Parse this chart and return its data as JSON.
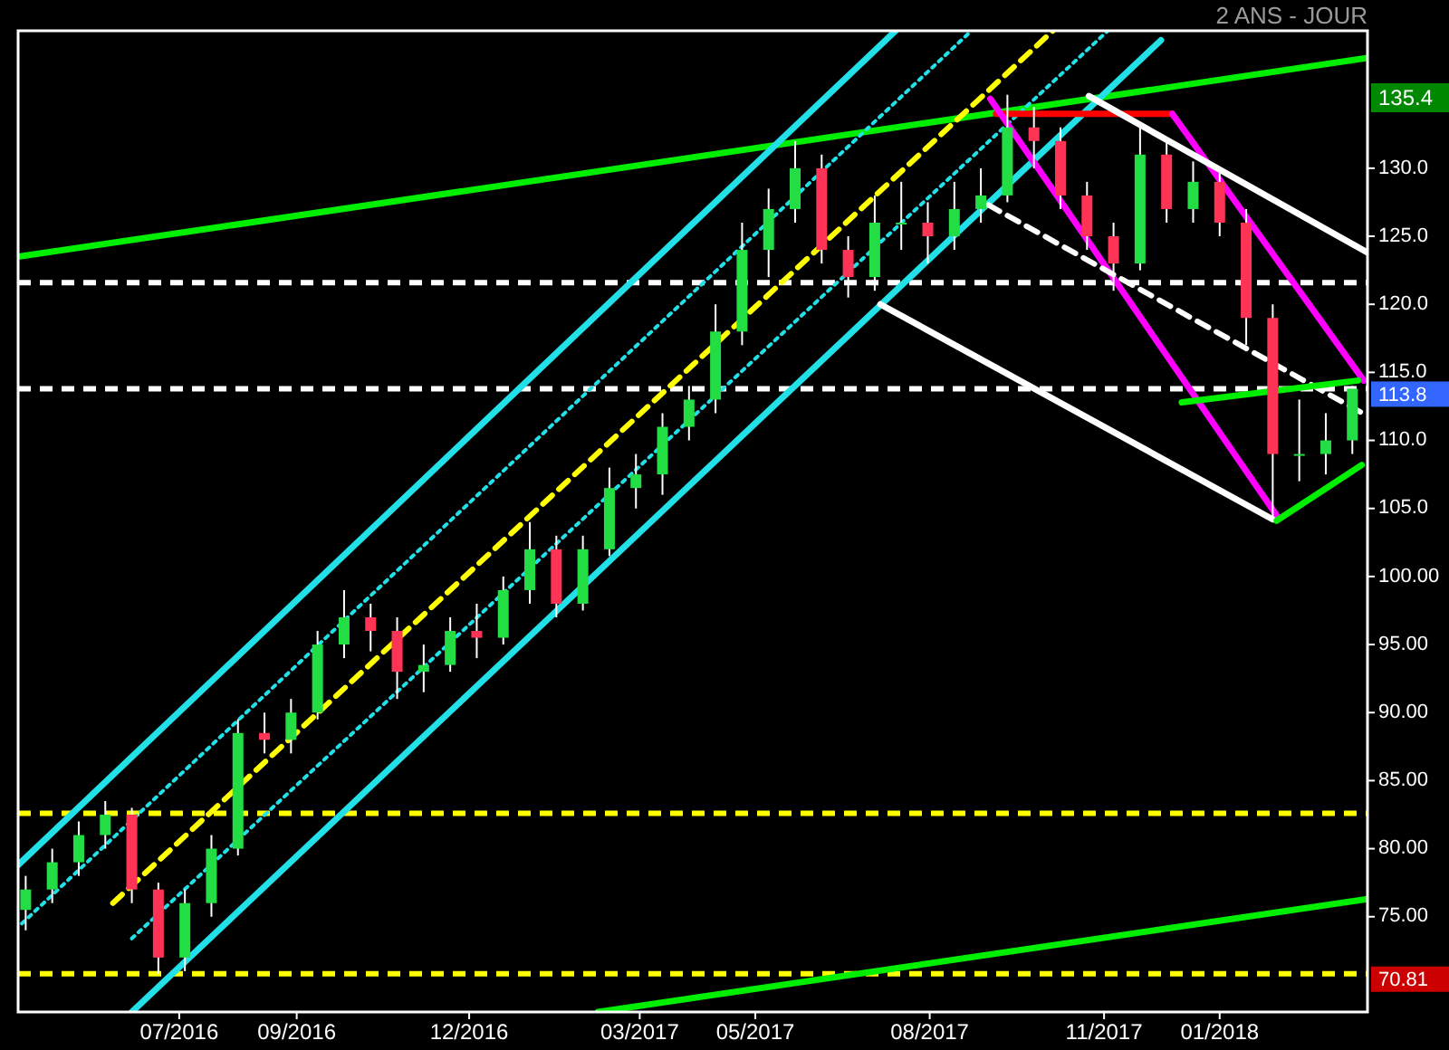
{
  "chart_data": {
    "type": "candlestick",
    "title": "2 ANS - JOUR",
    "x": [
      "2016-04-11",
      "2016-04-25",
      "2016-05-09",
      "2016-05-23",
      "2016-06-06",
      "2016-06-20",
      "2016-07-04",
      "2016-07-18",
      "2016-08-01",
      "2016-08-15",
      "2016-08-29",
      "2016-09-12",
      "2016-09-26",
      "2016-10-10",
      "2016-10-24",
      "2016-11-07",
      "2016-11-21",
      "2016-12-05",
      "2016-12-19",
      "2017-01-02",
      "2017-01-16",
      "2017-01-30",
      "2017-02-13",
      "2017-02-27",
      "2017-03-13",
      "2017-03-27",
      "2017-04-10",
      "2017-04-24",
      "2017-05-08",
      "2017-05-22",
      "2017-06-05",
      "2017-06-19",
      "2017-07-03",
      "2017-07-17",
      "2017-07-31",
      "2017-08-14",
      "2017-08-28",
      "2017-09-11",
      "2017-09-25",
      "2017-10-09",
      "2017-10-23",
      "2017-11-06",
      "2017-11-20",
      "2017-12-04",
      "2017-12-18",
      "2018-01-01",
      "2018-01-15",
      "2018-01-29",
      "2018-02-12",
      "2018-02-26",
      "2018-03-12"
    ],
    "ohlc": [
      [
        75.5,
        78,
        74,
        77
      ],
      [
        77,
        80,
        76,
        79
      ],
      [
        79,
        82,
        78,
        81
      ],
      [
        81,
        83.5,
        80,
        82.5
      ],
      [
        82.5,
        83,
        76,
        77
      ],
      [
        77,
        77.5,
        70.81,
        72
      ],
      [
        72,
        77,
        71,
        76
      ],
      [
        76,
        81,
        75,
        80
      ],
      [
        80,
        89.5,
        79.5,
        88.5
      ],
      [
        88.5,
        90,
        87,
        88
      ],
      [
        88,
        91,
        87,
        90
      ],
      [
        90,
        96,
        89.5,
        95
      ],
      [
        95,
        99,
        94,
        97
      ],
      [
        97,
        98,
        94.5,
        96
      ],
      [
        96,
        97,
        91,
        93
      ],
      [
        93,
        95,
        91.5,
        93.5
      ],
      [
        93.5,
        97,
        93,
        96
      ],
      [
        96,
        98,
        94,
        95.5
      ],
      [
        95.5,
        100,
        95,
        99
      ],
      [
        99,
        104,
        98,
        102
      ],
      [
        102,
        103,
        97,
        98
      ],
      [
        98,
        103,
        97.5,
        102
      ],
      [
        102,
        108,
        101.5,
        106.5
      ],
      [
        106.5,
        109,
        105,
        107.5
      ],
      [
        107.5,
        112,
        106,
        111
      ],
      [
        111,
        114,
        110,
        113
      ],
      [
        113,
        120,
        112,
        118
      ],
      [
        118,
        126,
        117,
        124
      ],
      [
        124,
        128.5,
        122,
        127
      ],
      [
        127,
        132,
        126,
        130
      ],
      [
        130,
        131,
        123,
        124
      ],
      [
        124,
        125,
        120.5,
        122
      ],
      [
        122,
        128,
        121,
        126
      ],
      [
        126,
        129,
        124,
        126
      ],
      [
        126,
        127.5,
        123,
        125
      ],
      [
        125,
        129,
        124,
        127
      ],
      [
        127,
        130,
        126,
        128
      ],
      [
        128,
        135.4,
        127.5,
        133
      ],
      [
        133,
        134.5,
        130,
        132
      ],
      [
        132,
        133,
        127,
        128
      ],
      [
        128,
        129,
        124,
        125
      ],
      [
        125,
        126,
        121,
        123
      ],
      [
        123,
        133,
        122.5,
        131
      ],
      [
        131,
        132,
        126,
        127
      ],
      [
        127,
        130.5,
        126,
        129
      ],
      [
        129,
        130,
        125,
        126
      ],
      [
        126,
        127,
        117,
        119
      ],
      [
        119,
        120,
        104,
        109
      ],
      [
        109,
        113,
        107,
        109
      ],
      [
        109,
        112,
        107.5,
        110
      ],
      [
        110,
        114,
        109,
        113.8
      ]
    ],
    "series": [
      {
        "type": "line",
        "color": "#00ee00",
        "line_style": "solid",
        "x": [
          "2016-04-07",
          "2018-03-20"
        ],
        "values": [
          123.5,
          138.1
        ]
      },
      {
        "type": "line",
        "color": "#00ee00",
        "line_style": "solid",
        "x": [
          "2017-02-07",
          "2018-03-20"
        ],
        "values": [
          68,
          76.3
        ]
      },
      {
        "type": "line",
        "color": "#22e0e8",
        "line_style": "solid",
        "x": [
          "2016-04-07",
          "2017-07-14"
        ],
        "values": [
          78.8,
          140.1
        ]
      },
      {
        "type": "line",
        "color": "#22e0e8",
        "line_style": "solid",
        "x": [
          "2016-06-06",
          "2017-12-01"
        ],
        "values": [
          68,
          139.4
        ]
      },
      {
        "type": "line",
        "color": "#22e0e8",
        "line_style": "dotted",
        "x": [
          "2016-04-09",
          "2017-08-23"
        ],
        "values": [
          74.5,
          140.1
        ]
      },
      {
        "type": "line",
        "color": "#22e0e8",
        "line_style": "dotted",
        "x": [
          "2016-06-06",
          "2017-11-03"
        ],
        "values": [
          73.4,
          140.1
        ]
      },
      {
        "type": "line",
        "color": "#ffff00",
        "line_style": "dashed",
        "x": [
          "2016-05-27",
          "2017-10-05"
        ],
        "values": [
          76,
          140.1
        ]
      },
      {
        "type": "line",
        "color": "#ff0000",
        "line_style": "solid",
        "x": [
          "2017-09-05",
          "2017-12-07"
        ],
        "values": [
          134,
          134
        ]
      },
      {
        "type": "line",
        "color": "#ff00ff",
        "line_style": "solid",
        "x": [
          "2017-09-02",
          "2018-01-31"
        ],
        "values": [
          135.1,
          104.5
        ]
      },
      {
        "type": "line",
        "color": "#ff00ff",
        "line_style": "solid",
        "x": [
          "2017-12-07",
          "2018-03-18"
        ],
        "values": [
          134,
          114.4
        ]
      },
      {
        "type": "line",
        "color": "#ffffff",
        "line_style": "solid",
        "x": [
          "2017-10-24",
          "2018-03-20"
        ],
        "values": [
          135.3,
          123.8
        ]
      },
      {
        "type": "line",
        "color": "#ffffff",
        "line_style": "solid",
        "x": [
          "2017-07-06",
          "2018-01-29"
        ],
        "values": [
          120,
          104.2
        ]
      },
      {
        "type": "line",
        "color": "#ffffff",
        "line_style": "dashed",
        "x": [
          "2017-09-01",
          "2018-03-20"
        ],
        "values": [
          127.3,
          111.8
        ]
      },
      {
        "type": "line",
        "color": "#00ee00",
        "line_style": "solid",
        "x": [
          "2017-12-12",
          "2018-03-15"
        ],
        "values": [
          112.8,
          114.4
        ]
      },
      {
        "type": "line",
        "color": "#00ee00",
        "line_style": "solid",
        "x": [
          "2018-01-31",
          "2018-03-17"
        ],
        "values": [
          104.1,
          108.2
        ]
      }
    ],
    "ref_lines": [
      {
        "axis": "y",
        "value": 121.6,
        "color": "#ffffff",
        "line_style": "dashed"
      },
      {
        "axis": "y",
        "value": 113.8,
        "label": "113.8",
        "color": "#ffffff",
        "line_style": "dashed"
      },
      {
        "axis": "y",
        "value": 82.6,
        "color": "#ffff00",
        "line_style": "dashed"
      },
      {
        "axis": "y",
        "value": 70.81,
        "label": "70.81",
        "color": "#ffff00",
        "line_style": "dashed"
      }
    ],
    "annotations": [
      "135.4"
    ],
    "xlim": [
      "2016-04-07",
      "2018-03-20"
    ],
    "xticks": [
      {
        "value": "2016-07-01",
        "label": "07/2016"
      },
      {
        "value": "2016-09-01",
        "label": "09/2016"
      },
      {
        "value": "2016-12-01",
        "label": "12/2016"
      },
      {
        "value": "2017-03-01",
        "label": "03/2017"
      },
      {
        "value": "2017-05-01",
        "label": "05/2017"
      },
      {
        "value": "2017-08-01",
        "label": "08/2017"
      },
      {
        "value": "2017-11-01",
        "label": "11/2017"
      },
      {
        "value": "2018-01-01",
        "label": "01/2018"
      }
    ],
    "ylim": [
      68,
      140.1
    ],
    "yticks": [
      {
        "value": 75,
        "label": "75.00"
      },
      {
        "value": 80,
        "label": "80.00"
      },
      {
        "value": 85,
        "label": "85.00"
      },
      {
        "value": 90,
        "label": "90.00"
      },
      {
        "value": 95,
        "label": "95.00"
      },
      {
        "value": 100,
        "label": "100.00"
      },
      {
        "value": 105,
        "label": "105.0"
      },
      {
        "value": 110,
        "label": "110.0"
      },
      {
        "value": 115,
        "label": "115.0"
      },
      {
        "value": 120,
        "label": "120.0"
      },
      {
        "value": 125,
        "label": "125.0"
      },
      {
        "value": 130,
        "label": "130.0"
      }
    ],
    "grid": false
  }
}
